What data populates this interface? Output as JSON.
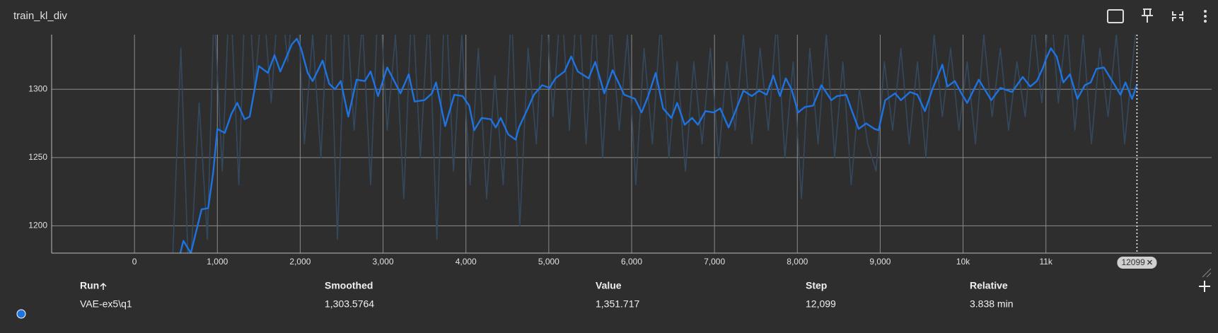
{
  "header": {
    "title": "train_kl_div"
  },
  "chart_data": {
    "type": "line",
    "xlim": [
      -1000,
      13000
    ],
    "ylim": [
      1180,
      1340
    ],
    "xticks": [
      0,
      {
        "value": 1000,
        "label": "1,000"
      },
      {
        "value": 2000,
        "label": "2,000"
      },
      {
        "value": 3000,
        "label": "3,000"
      },
      {
        "value": 4000,
        "label": "4,000"
      },
      {
        "value": 5000,
        "label": "5,000"
      },
      {
        "value": 6000,
        "label": "6,000"
      },
      {
        "value": 7000,
        "label": "7,000"
      },
      {
        "value": 8000,
        "label": "8,000"
      },
      {
        "value": 9000,
        "label": "9,000"
      },
      {
        "value": 10000,
        "label": "10k"
      },
      {
        "value": 11000,
        "label": "11k"
      }
    ],
    "yticks": [
      1200,
      1250,
      1300
    ],
    "grid": true,
    "cursor": {
      "value": 12099,
      "label": "12099"
    },
    "series": [
      {
        "color": "#34495e",
        "width": 1.6,
        "x": [
          450,
          560,
          660,
          780,
          880,
          960,
          1060,
          1150,
          1260,
          1350,
          1450,
          1550,
          1650,
          1750,
          1850,
          1950,
          2050,
          2150,
          2250,
          2350,
          2450,
          2550,
          2650,
          2750,
          2850,
          2950,
          3050,
          3150,
          3250,
          3350,
          3450,
          3550,
          3650,
          3750,
          3850,
          3950,
          4050,
          4150,
          4250,
          4350,
          4450,
          4550,
          4650,
          4750,
          4850,
          4950,
          5050,
          5150,
          5250,
          5350,
          5450,
          5550,
          5650,
          5750,
          5850,
          5950,
          6050,
          6150,
          6250,
          6350,
          6450,
          6550,
          6650,
          6750,
          6850,
          6950,
          7050,
          7150,
          7250,
          7350,
          7450,
          7550,
          7650,
          7750,
          7850,
          7950,
          8050,
          8150,
          8250,
          8350,
          8450,
          8550,
          8650,
          8750,
          8850,
          8950,
          9050,
          9150,
          9250,
          9350,
          9450,
          9550,
          9650,
          9750,
          9850,
          9950,
          10050,
          10150,
          10250,
          10350,
          10450,
          10550,
          10650,
          10750,
          10850,
          10950,
          11050,
          11150,
          11250,
          11350,
          11450,
          11550,
          11650,
          11750,
          11850,
          11950,
          12099
        ],
        "values": [
          1160,
          1330,
          1150,
          1290,
          1190,
          1360,
          1240,
          1380,
          1230,
          1400,
          1300,
          1370,
          1290,
          1380,
          1320,
          1390,
          1260,
          1340,
          1250,
          1380,
          1190,
          1370,
          1270,
          1350,
          1230,
          1380,
          1270,
          1340,
          1220,
          1370,
          1250,
          1360,
          1190,
          1380,
          1240,
          1340,
          1230,
          1330,
          1220,
          1310,
          1230,
          1360,
          1200,
          1330,
          1260,
          1380,
          1280,
          1370,
          1270,
          1380,
          1260,
          1360,
          1250,
          1350,
          1270,
          1340,
          1230,
          1330,
          1260,
          1350,
          1250,
          1320,
          1240,
          1320,
          1260,
          1330,
          1250,
          1320,
          1270,
          1340,
          1260,
          1330,
          1270,
          1350,
          1250,
          1320,
          1220,
          1330,
          1260,
          1340,
          1250,
          1320,
          1230,
          1300,
          1260,
          1240,
          1320,
          1270,
          1330,
          1260,
          1320,
          1250,
          1340,
          1280,
          1330,
          1270,
          1320,
          1260,
          1340,
          1280,
          1330,
          1270,
          1320,
          1280,
          1350,
          1290,
          1370,
          1290,
          1350,
          1270,
          1340,
          1260,
          1330,
          1280,
          1340,
          1260,
          1351.717
        ]
      },
      {
        "color": "#1f73e0",
        "width": 2.4,
        "x": [
          470,
          590,
          680,
          810,
          890,
          950,
          1000,
          1090,
          1170,
          1240,
          1330,
          1390,
          1500,
          1610,
          1690,
          1760,
          1900,
          1960,
          2010,
          2090,
          2150,
          2270,
          2350,
          2420,
          2490,
          2580,
          2680,
          2780,
          2850,
          2940,
          3050,
          3110,
          3210,
          3310,
          3380,
          3500,
          3590,
          3640,
          3750,
          3860,
          3960,
          4040,
          4100,
          4190,
          4300,
          4360,
          4420,
          4510,
          4600,
          4640,
          4740,
          4820,
          4920,
          5010,
          5080,
          5190,
          5270,
          5350,
          5480,
          5560,
          5670,
          5770,
          5910,
          6040,
          6120,
          6200,
          6290,
          6380,
          6480,
          6550,
          6640,
          6730,
          6800,
          6890,
          6990,
          7070,
          7170,
          7240,
          7350,
          7450,
          7540,
          7630,
          7710,
          7790,
          7860,
          7930,
          8010,
          8090,
          8190,
          8290,
          8410,
          8480,
          8590,
          8660,
          8740,
          8830,
          8930,
          8980,
          9060,
          9180,
          9250,
          9360,
          9450,
          9540,
          9630,
          9750,
          9810,
          9900,
          9980,
          10050,
          10190,
          10340,
          10450,
          10590,
          10720,
          10810,
          10890,
          10960,
          11000,
          11060,
          11130,
          11210,
          11290,
          11380,
          11470,
          11540,
          11610,
          11700,
          11820,
          11900,
          11960,
          12040,
          12099
        ],
        "values": [
          1160,
          1189,
          1180,
          1212,
          1213,
          1239,
          1271,
          1268,
          1282,
          1290,
          1278,
          1280,
          1317,
          1312,
          1325,
          1313,
          1333,
          1337,
          1330,
          1312,
          1306,
          1321,
          1304,
          1300,
          1306,
          1280,
          1307,
          1306,
          1313,
          1295,
          1316,
          1309,
          1297,
          1311,
          1291,
          1292,
          1297,
          1305,
          1273,
          1296,
          1295,
          1288,
          1270,
          1279,
          1278,
          1272,
          1279,
          1267,
          1263,
          1272,
          1285,
          1296,
          1303,
          1301,
          1308,
          1313,
          1324,
          1313,
          1308,
          1320,
          1297,
          1314,
          1296,
          1293,
          1283,
          1295,
          1312,
          1286,
          1279,
          1290,
          1274,
          1279,
          1274,
          1284,
          1283,
          1286,
          1272,
          1282,
          1299,
          1295,
          1299,
          1296,
          1310,
          1295,
          1308,
          1300,
          1283,
          1287,
          1288,
          1303,
          1292,
          1295,
          1296,
          1284,
          1271,
          1275,
          1271,
          1270,
          1292,
          1297,
          1292,
          1298,
          1296,
          1284,
          1300,
          1318,
          1302,
          1306,
          1297,
          1290,
          1307,
          1292,
          1301,
          1298,
          1309,
          1302,
          1306,
          1315,
          1322,
          1330,
          1324,
          1305,
          1311,
          1293,
          1303,
          1305,
          1315,
          1316,
          1304,
          1296,
          1305,
          1293,
          1303.5764
        ]
      }
    ]
  },
  "table": {
    "columns": [
      "Run",
      "Smoothed",
      "Value",
      "Step",
      "Relative"
    ],
    "rows": [
      [
        "VAE-ex5\\q1",
        "1,303.5764",
        "1,351.717",
        "12,099",
        "3.838 min"
      ]
    ]
  }
}
